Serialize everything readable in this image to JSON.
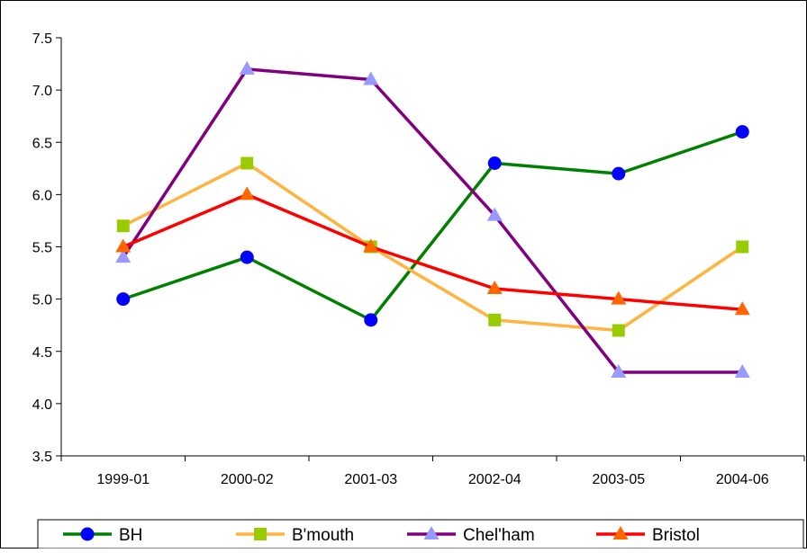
{
  "chart_data": {
    "type": "line",
    "title": "",
    "xlabel": "",
    "ylabel": "",
    "categories": [
      "1999-01",
      "2000-02",
      "2001-03",
      "2002-04",
      "2003-05",
      "2004-06"
    ],
    "ylim": [
      3.5,
      7.5
    ],
    "yticks": [
      "3.5",
      "4.0",
      "4.5",
      "5.0",
      "5.5",
      "6.0",
      "6.5",
      "7.0",
      "7.5"
    ],
    "grid": false,
    "legend_position": "bottom",
    "series": [
      {
        "name": "BH",
        "color": "#008000",
        "marker_color": "#0000ff",
        "marker": "circle",
        "values": [
          5.0,
          5.4,
          4.8,
          6.3,
          6.2,
          6.6
        ]
      },
      {
        "name": "B'mouth",
        "color": "#ffb340",
        "marker_color": "#99cc00",
        "marker": "square",
        "values": [
          5.7,
          6.3,
          5.5,
          4.8,
          4.7,
          5.5
        ]
      },
      {
        "name": "Chel'ham",
        "color": "#800080",
        "marker_color": "#9999ff",
        "marker": "triangle",
        "values": [
          5.4,
          7.2,
          7.1,
          5.8,
          4.3,
          4.3
        ]
      },
      {
        "name": "Bristol",
        "color": "#ff0000",
        "marker_color": "#ff6600",
        "marker": "triangle",
        "values": [
          5.5,
          6.0,
          5.5,
          5.1,
          5.0,
          4.9
        ]
      }
    ]
  }
}
